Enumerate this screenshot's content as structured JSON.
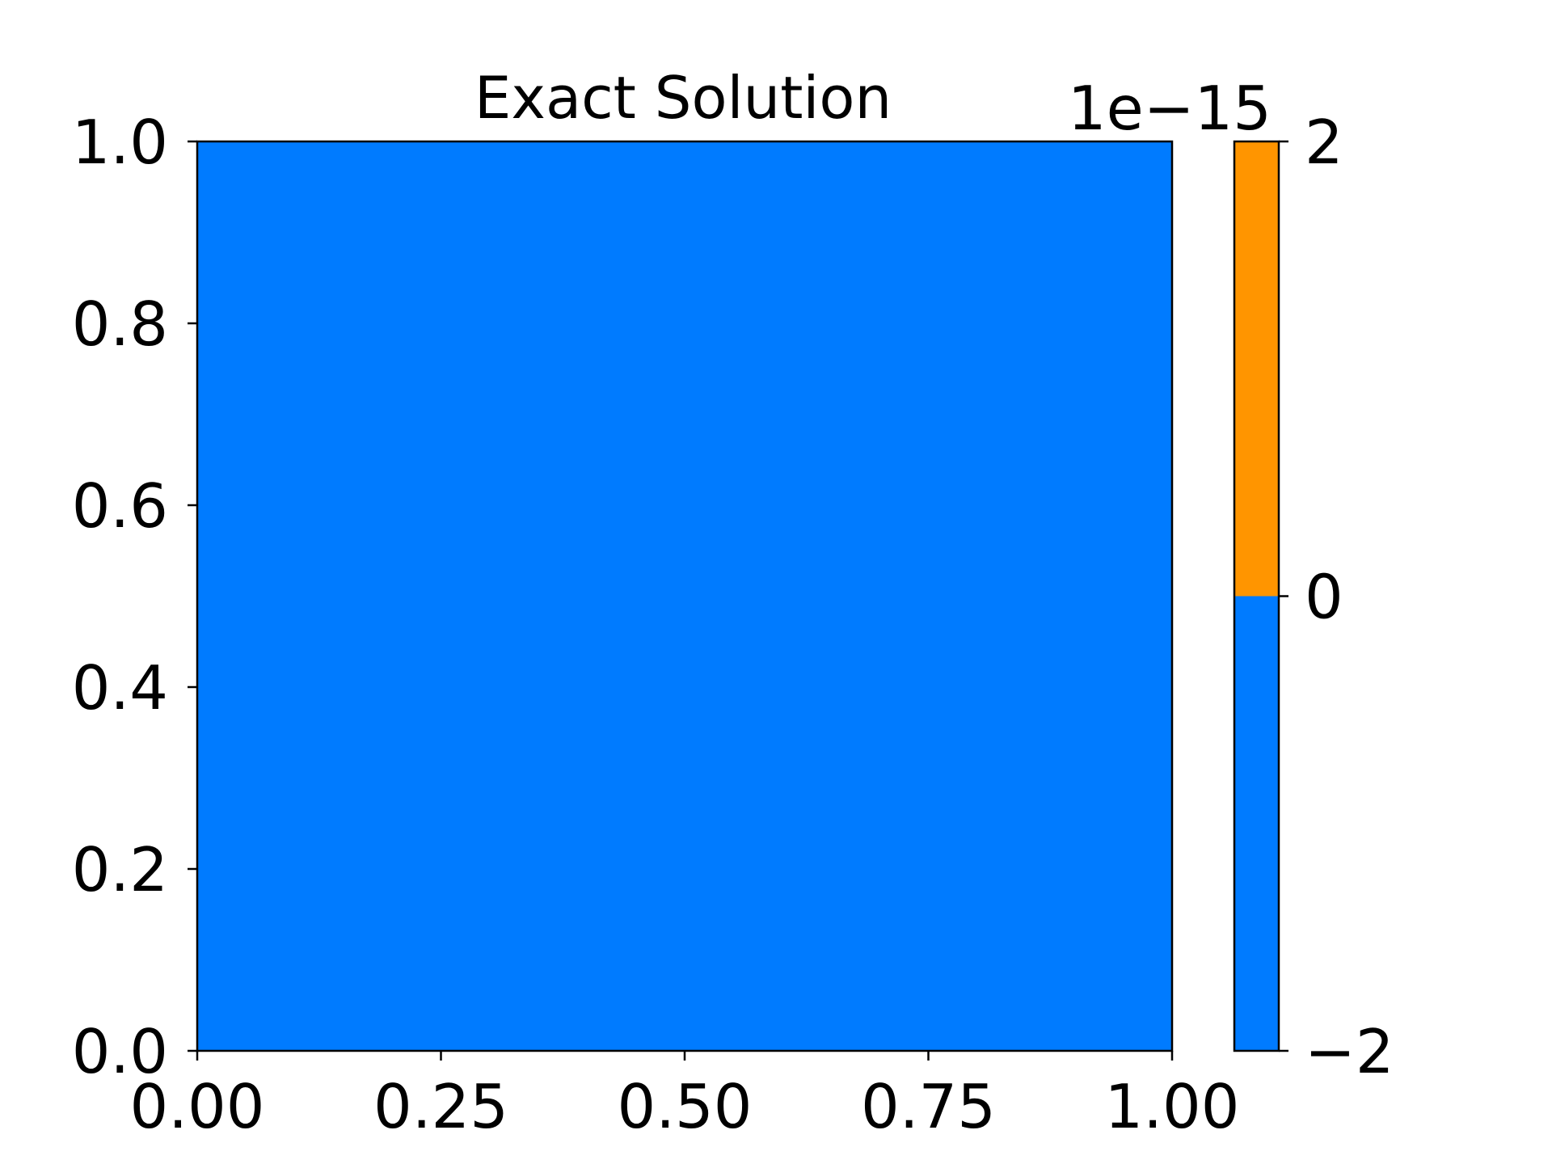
{
  "chart_data": {
    "type": "heatmap",
    "title": "Exact Solution",
    "xlabel": "",
    "ylabel": "",
    "x_ticks": [
      "0.00",
      "0.25",
      "0.50",
      "0.75",
      "1.00"
    ],
    "x_tick_values": [
      0,
      0.25,
      0.5,
      0.75,
      1.0
    ],
    "y_ticks": [
      "0.0",
      "0.2",
      "0.4",
      "0.6",
      "0.8",
      "1.0"
    ],
    "y_tick_values": [
      0,
      0.2,
      0.4,
      0.6,
      0.8,
      1.0
    ],
    "xlim": [
      0,
      1
    ],
    "ylim": [
      0,
      1
    ],
    "field_value": 0,
    "field_color": "#007bff",
    "grid": false,
    "colorbar": {
      "offset_text": "1e−15",
      "ticks": [
        "2",
        "0",
        "−2"
      ],
      "tick_values": [
        2,
        0,
        -2
      ],
      "range": [
        -2,
        2
      ],
      "levels": [
        {
          "from": -2,
          "to": 0,
          "color": "#007bff"
        },
        {
          "from": 0,
          "to": 2,
          "color": "#ff9500"
        }
      ]
    }
  }
}
